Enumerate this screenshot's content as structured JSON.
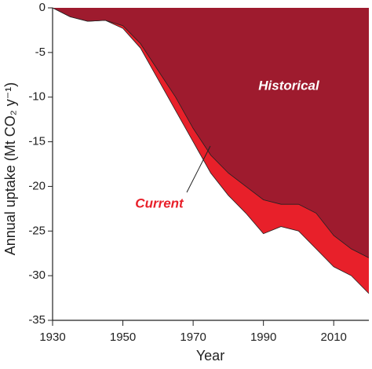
{
  "chart_data": {
    "type": "area",
    "xlabel": "Year",
    "ylabel": "Annual uptake (Mt CO₂ y⁻¹)",
    "x": [
      1930,
      1935,
      1940,
      1945,
      1950,
      1955,
      1960,
      1965,
      1970,
      1975,
      1980,
      1985,
      1990,
      1995,
      2000,
      2005,
      2010,
      2015,
      2020
    ],
    "series": [
      {
        "name": "Historical",
        "color": "#9e1b2e",
        "values": [
          0,
          -1,
          -1.5,
          -1.4,
          -2,
          -4,
          -7,
          -10,
          -13.5,
          -16.5,
          -18.5,
          -20,
          -21.5,
          -22,
          -22,
          -23,
          -25.5,
          -27,
          -28
        ]
      },
      {
        "name": "Current",
        "color": "#e8202a",
        "values": [
          0,
          -1,
          -1.5,
          -1.4,
          -2.3,
          -4.5,
          -8,
          -11.5,
          -15,
          -18.5,
          -21,
          -23,
          -25.3,
          -24.5,
          -25,
          -27,
          -29,
          -30,
          -32
        ]
      }
    ],
    "xlim": [
      1930,
      2020
    ],
    "xticks": [
      1930,
      1950,
      1970,
      1990,
      2010
    ],
    "ylim": [
      -35,
      0
    ],
    "yticks": [
      0,
      -5,
      -10,
      -15,
      -20,
      -25,
      -30,
      -35
    ]
  }
}
